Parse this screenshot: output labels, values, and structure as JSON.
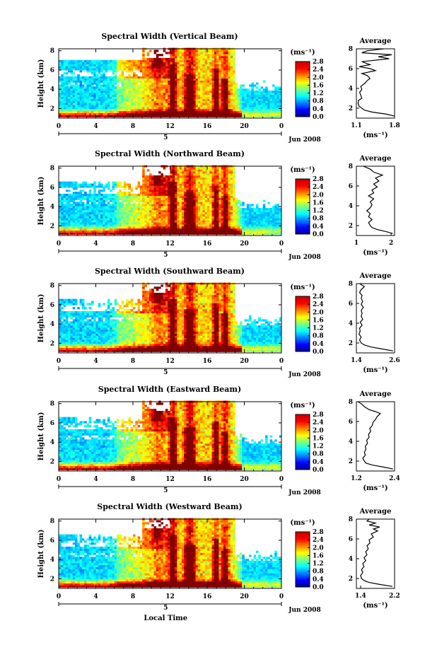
{
  "chart_data": [
    {
      "type": "heatmap",
      "title": "Spectral Width (Vertical Beam)",
      "ylabel": "Height (km)",
      "x_ticks": [
        "0",
        "4",
        "8",
        "12",
        "16",
        "20",
        "0"
      ],
      "y_ticks": [
        "2",
        "4",
        "6",
        "8"
      ],
      "date_tick": "5",
      "date_label": "Jun 2008",
      "colorbar": {
        "unit": "(ms⁻¹)",
        "ticks": [
          "2.8",
          "2.4",
          "2.0",
          "1.6",
          "1.2",
          "0.8",
          "0.4",
          "0.0"
        ],
        "range": [
          0.0,
          2.8
        ]
      },
      "average": {
        "title": "Average",
        "xlabel": "(ms⁻¹)",
        "x_ticks": [
          "1.1",
          "1.8"
        ],
        "xlim": [
          1.1,
          1.8
        ],
        "y_ticks": [
          "2",
          "4",
          "6",
          "8"
        ],
        "ylim": [
          1,
          8
        ],
        "profile": [
          [
            1.8,
            1.2
          ],
          [
            1.65,
            1.4
          ],
          [
            1.4,
            1.6
          ],
          [
            1.25,
            1.8
          ],
          [
            1.2,
            2.0
          ],
          [
            1.15,
            2.2
          ],
          [
            1.13,
            2.5
          ],
          [
            1.14,
            2.8
          ],
          [
            1.2,
            3.0
          ],
          [
            1.18,
            3.3
          ],
          [
            1.16,
            3.6
          ],
          [
            1.2,
            3.9
          ],
          [
            1.18,
            4.2
          ],
          [
            1.25,
            4.5
          ],
          [
            1.3,
            4.8
          ],
          [
            1.35,
            5.0
          ],
          [
            1.3,
            5.3
          ],
          [
            1.2,
            5.5
          ],
          [
            1.45,
            5.8
          ],
          [
            1.35,
            6.0
          ],
          [
            1.15,
            6.2
          ],
          [
            1.35,
            6.4
          ],
          [
            1.2,
            6.7
          ],
          [
            1.7,
            7.0
          ],
          [
            1.5,
            7.2
          ],
          [
            1.75,
            7.4
          ],
          [
            1.2,
            7.6
          ],
          [
            1.3,
            7.8
          ],
          [
            1.6,
            8.0
          ]
        ]
      }
    },
    {
      "type": "heatmap",
      "title": "Spectral Width (Northward Beam)",
      "ylabel": "Height (km)",
      "x_ticks": [
        "0",
        "4",
        "8",
        "12",
        "16",
        "20",
        "0"
      ],
      "y_ticks": [
        "2",
        "4",
        "6",
        "8"
      ],
      "date_tick": "5",
      "date_label": "Jun 2008",
      "colorbar": {
        "unit": "(ms⁻¹)",
        "ticks": [
          "2.8",
          "2.4",
          "2.0",
          "1.6",
          "1.2",
          "0.8",
          "0.4",
          "0.0"
        ],
        "range": [
          0.0,
          2.8
        ]
      },
      "average": {
        "title": "Average",
        "xlabel": "(ms⁻¹)",
        "x_ticks": [
          "1",
          "2"
        ],
        "xlim": [
          1.0,
          2.1
        ],
        "y_ticks": [
          "2",
          "4",
          "6",
          "8"
        ],
        "ylim": [
          1,
          8
        ],
        "profile": [
          [
            2.05,
            1.2
          ],
          [
            1.85,
            1.4
          ],
          [
            1.6,
            1.6
          ],
          [
            1.45,
            1.8
          ],
          [
            1.4,
            2.0
          ],
          [
            1.35,
            2.3
          ],
          [
            1.45,
            2.6
          ],
          [
            1.35,
            2.9
          ],
          [
            1.4,
            3.2
          ],
          [
            1.3,
            3.5
          ],
          [
            1.4,
            3.8
          ],
          [
            1.45,
            4.1
          ],
          [
            1.4,
            4.4
          ],
          [
            1.5,
            4.7
          ],
          [
            1.35,
            5.0
          ],
          [
            1.5,
            5.3
          ],
          [
            1.45,
            5.6
          ],
          [
            1.6,
            5.9
          ],
          [
            1.5,
            6.2
          ],
          [
            1.65,
            6.5
          ],
          [
            1.55,
            6.8
          ],
          [
            1.75,
            7.1
          ],
          [
            1.5,
            7.4
          ],
          [
            1.4,
            7.7
          ],
          [
            1.2,
            8.0
          ]
        ]
      }
    },
    {
      "type": "heatmap",
      "title": "Spectral Width (Southward Beam)",
      "ylabel": "Height (km)",
      "x_ticks": [
        "0",
        "4",
        "8",
        "12",
        "16",
        "20",
        "0"
      ],
      "y_ticks": [
        "2",
        "4",
        "6",
        "8"
      ],
      "date_tick": "5",
      "date_label": "Jun 2008",
      "colorbar": {
        "unit": "(ms⁻¹)",
        "ticks": [
          "2.8",
          "2.4",
          "2.0",
          "1.6",
          "1.2",
          "0.8",
          "0.4",
          "0.0"
        ],
        "range": [
          0.0,
          2.8
        ]
      },
      "average": {
        "title": "Average",
        "xlabel": "(ms⁻¹)",
        "x_ticks": [
          "1.4",
          "2.6"
        ],
        "xlim": [
          1.4,
          2.6
        ],
        "y_ticks": [
          "2",
          "4",
          "6",
          "8"
        ],
        "ylim": [
          1,
          8
        ],
        "profile": [
          [
            2.55,
            1.2
          ],
          [
            2.2,
            1.4
          ],
          [
            1.85,
            1.6
          ],
          [
            1.65,
            1.8
          ],
          [
            1.55,
            2.0
          ],
          [
            1.5,
            2.3
          ],
          [
            1.55,
            2.6
          ],
          [
            1.48,
            2.9
          ],
          [
            1.52,
            3.2
          ],
          [
            1.5,
            3.5
          ],
          [
            1.58,
            3.8
          ],
          [
            1.52,
            4.1
          ],
          [
            1.6,
            4.4
          ],
          [
            1.55,
            4.7
          ],
          [
            1.58,
            5.0
          ],
          [
            1.55,
            5.3
          ],
          [
            1.62,
            5.6
          ],
          [
            1.55,
            5.9
          ],
          [
            1.6,
            6.2
          ],
          [
            1.55,
            6.5
          ],
          [
            1.58,
            6.8
          ],
          [
            1.5,
            7.1
          ],
          [
            1.55,
            7.4
          ],
          [
            1.65,
            7.7
          ],
          [
            1.5,
            8.0
          ]
        ]
      }
    },
    {
      "type": "heatmap",
      "title": "Spectral Width (Eastward Beam)",
      "ylabel": "Height (km)",
      "x_ticks": [
        "0",
        "4",
        "8",
        "12",
        "16",
        "20",
        "0"
      ],
      "y_ticks": [
        "2",
        "4",
        "6",
        "8"
      ],
      "date_tick": "5",
      "date_label": "Jun 2008",
      "colorbar": {
        "unit": "(ms⁻¹)",
        "ticks": [
          "2.8",
          "2.4",
          "2.0",
          "1.6",
          "1.2",
          "0.8",
          "0.4",
          "0.0"
        ],
        "range": [
          0.0,
          2.8
        ]
      },
      "average": {
        "title": "Average",
        "xlabel": "(ms⁻¹)",
        "x_ticks": [
          "1.2",
          "2.4"
        ],
        "xlim": [
          1.2,
          2.4
        ],
        "y_ticks": [
          "2",
          "4",
          "6",
          "8"
        ],
        "ylim": [
          1,
          8
        ],
        "profile": [
          [
            2.35,
            1.2
          ],
          [
            2.05,
            1.4
          ],
          [
            1.7,
            1.6
          ],
          [
            1.5,
            1.8
          ],
          [
            1.45,
            2.0
          ],
          [
            1.4,
            2.3
          ],
          [
            1.48,
            2.6
          ],
          [
            1.45,
            2.9
          ],
          [
            1.5,
            3.2
          ],
          [
            1.48,
            3.5
          ],
          [
            1.55,
            3.8
          ],
          [
            1.52,
            4.1
          ],
          [
            1.6,
            4.4
          ],
          [
            1.58,
            4.7
          ],
          [
            1.65,
            5.0
          ],
          [
            1.62,
            5.3
          ],
          [
            1.7,
            5.6
          ],
          [
            1.72,
            5.9
          ],
          [
            1.8,
            6.2
          ],
          [
            1.85,
            6.5
          ],
          [
            1.95,
            6.8
          ],
          [
            1.8,
            7.0
          ],
          [
            1.6,
            7.2
          ],
          [
            1.45,
            7.5
          ],
          [
            1.35,
            7.8
          ],
          [
            1.25,
            8.0
          ]
        ]
      }
    },
    {
      "type": "heatmap",
      "title": "Spectral Width (Westward Beam)",
      "ylabel": "Height (km)",
      "xlabel": "Local Time",
      "x_ticks": [
        "0",
        "4",
        "8",
        "12",
        "16",
        "20",
        "0"
      ],
      "y_ticks": [
        "2",
        "4",
        "6",
        "8"
      ],
      "date_tick": "5",
      "date_label": "Jun 2008",
      "colorbar": {
        "unit": "(ms⁻¹)",
        "ticks": [
          "2.8",
          "2.4",
          "2.0",
          "1.6",
          "1.2",
          "0.8",
          "0.4",
          "0.0"
        ],
        "range": [
          0.0,
          2.8
        ]
      },
      "average": {
        "title": "Average",
        "xlabel": "(ms⁻¹)",
        "x_ticks": [
          "1.4",
          "2.2"
        ],
        "xlim": [
          1.3,
          2.2
        ],
        "y_ticks": [
          "2",
          "4",
          "6",
          "8"
        ],
        "ylim": [
          1,
          8
        ],
        "profile": [
          [
            2.15,
            1.2
          ],
          [
            1.85,
            1.4
          ],
          [
            1.6,
            1.6
          ],
          [
            1.48,
            1.8
          ],
          [
            1.42,
            2.0
          ],
          [
            1.4,
            2.3
          ],
          [
            1.45,
            2.6
          ],
          [
            1.42,
            2.9
          ],
          [
            1.48,
            3.2
          ],
          [
            1.45,
            3.5
          ],
          [
            1.52,
            3.8
          ],
          [
            1.48,
            4.1
          ],
          [
            1.55,
            4.4
          ],
          [
            1.52,
            4.7
          ],
          [
            1.58,
            5.0
          ],
          [
            1.55,
            5.3
          ],
          [
            1.62,
            5.6
          ],
          [
            1.6,
            5.9
          ],
          [
            1.7,
            6.2
          ],
          [
            1.65,
            6.5
          ],
          [
            1.8,
            6.8
          ],
          [
            1.7,
            7.0
          ],
          [
            1.85,
            7.2
          ],
          [
            1.6,
            7.4
          ],
          [
            1.75,
            7.6
          ],
          [
            1.55,
            7.8
          ],
          [
            1.6,
            8.0
          ]
        ]
      }
    }
  ]
}
